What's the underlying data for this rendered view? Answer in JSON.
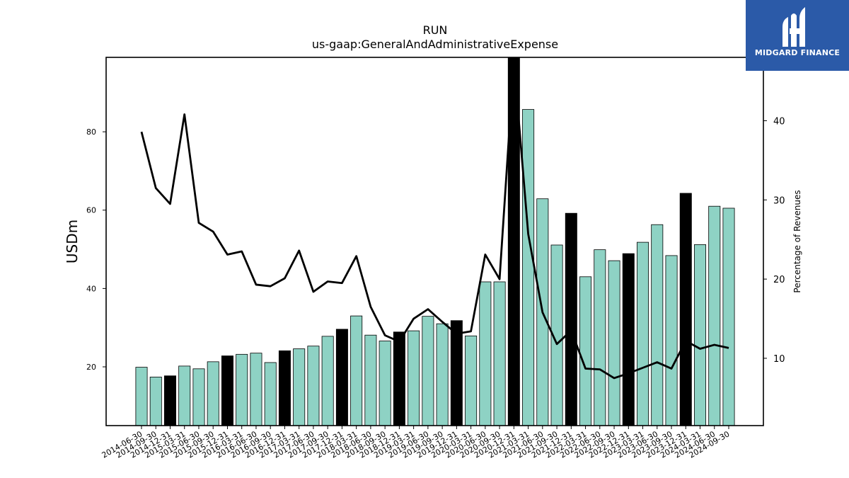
{
  "chart_data": {
    "type": "bar",
    "title": "RUN",
    "subtitle": "us-gaap:GeneralAndAdministrativeExpense",
    "ylabel": "USDm",
    "ylabel_right": "Percentage of Revenues",
    "ylim": [
      5,
      99
    ],
    "ylim_right": [
      1.5,
      48
    ],
    "yticks_left": [
      20,
      40,
      60,
      80
    ],
    "yticks_right": [
      10,
      20,
      30,
      40
    ],
    "categories": [
      "2014-06-30",
      "2014-09-30",
      "2014-12-31",
      "2015-03-31",
      "2015-06-30",
      "2015-09-30",
      "2015-12-31",
      "2016-03-31",
      "2016-06-30",
      "2016-09-30",
      "2016-12-31",
      "2017-03-31",
      "2017-06-30",
      "2017-09-30",
      "2017-12-31",
      "2018-03-31",
      "2018-06-30",
      "2018-09-30",
      "2018-12-31",
      "2019-03-31",
      "2019-06-30",
      "2019-09-30",
      "2019-12-31",
      "2020-03-31",
      "2020-06-30",
      "2020-09-30",
      "2020-12-31",
      "2021-03-31",
      "2021-06-30",
      "2021-09-30",
      "2021-12-31",
      "2022-03-31",
      "2022-06-30",
      "2022-09-30",
      "2022-12-31",
      "2023-03-31",
      "2023-06-30",
      "2023-09-30",
      "2023-12-31",
      "2024-03-31",
      "2024-06-30",
      "2024-09-30"
    ],
    "series": [
      {
        "type": "bar",
        "values": [
          19.9,
          17.4,
          17.7,
          20.2,
          19.5,
          21.3,
          22.8,
          23.2,
          23.5,
          21.1,
          24.1,
          24.6,
          25.3,
          27.8,
          29.6,
          33.0,
          28.1,
          26.6,
          28.9,
          29.2,
          32.9,
          31.0,
          31.8,
          27.9,
          41.7,
          41.7,
          99,
          85.7,
          62.9,
          51.1,
          59.2,
          43.0,
          49.9,
          47.1,
          48.9,
          51.8,
          56.3,
          48.4,
          64.3,
          51.2,
          61.0,
          60.5
        ],
        "highlight": [
          false,
          false,
          true,
          false,
          false,
          false,
          true,
          false,
          false,
          false,
          true,
          false,
          false,
          false,
          true,
          false,
          false,
          false,
          true,
          false,
          false,
          false,
          true,
          false,
          false,
          false,
          true,
          false,
          false,
          false,
          true,
          false,
          false,
          false,
          true,
          false,
          false,
          false,
          true,
          false,
          false,
          false
        ]
      },
      {
        "type": "line",
        "axis": "right",
        "values": [
          38.6,
          31.5,
          29.5,
          40.8,
          27.1,
          26.0,
          23.1,
          23.5,
          19.3,
          19.1,
          20.1,
          23.6,
          18.4,
          19.7,
          19.5,
          22.9,
          16.5,
          12.9,
          12.1,
          15.0,
          16.2,
          14.6,
          13.1,
          13.4,
          23.1,
          20.0,
          47.5,
          25.7,
          15.8,
          11.8,
          13.5,
          8.7,
          8.6,
          7.5,
          8.1,
          8.8,
          9.5,
          8.7,
          12.2,
          11.2,
          11.7,
          11.3
        ]
      }
    ],
    "colors": {
      "bar": "#8ed2c4",
      "highlight": "#000000",
      "line": "#000000",
      "edge": "#000000"
    },
    "logo_text": "MIDGARD FINANCE"
  }
}
